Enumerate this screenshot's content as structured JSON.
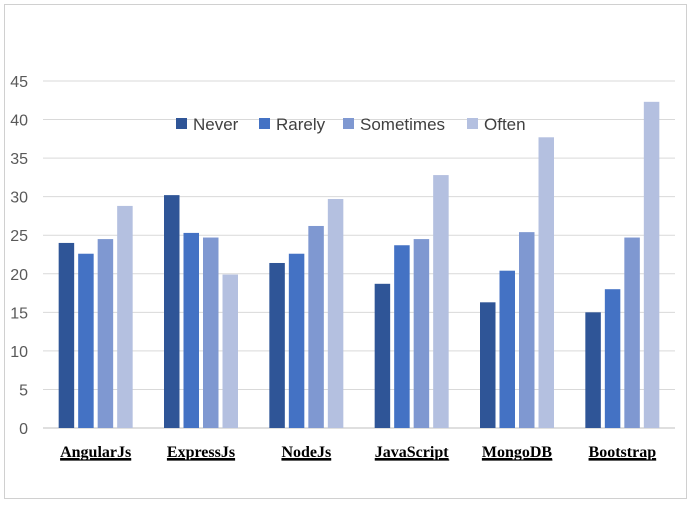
{
  "chart_data": {
    "type": "bar",
    "title": "",
    "xlabel": "",
    "ylabel": "",
    "categories": [
      "AngularJs",
      "ExpressJs",
      "NodeJs",
      "JavaScript",
      "MongoDB",
      "Bootstrap"
    ],
    "series": [
      {
        "name": "Never",
        "color": "#2f5597",
        "values": [
          24,
          30.2,
          21.4,
          18.7,
          16.3,
          15
        ]
      },
      {
        "name": "Rarely",
        "color": "#4472c4",
        "values": [
          22.6,
          25.3,
          22.6,
          23.7,
          20.4,
          18
        ]
      },
      {
        "name": "Sometimes",
        "color": "#7f98d1",
        "values": [
          24.5,
          24.7,
          26.2,
          24.5,
          25.4,
          24.7
        ]
      },
      {
        "name": "Often",
        "color": "#b4c0e0",
        "values": [
          28.8,
          19.9,
          29.7,
          32.8,
          37.7,
          42.3
        ]
      }
    ],
    "ylim": [
      0,
      45
    ],
    "yticks": [
      0,
      5,
      10,
      15,
      20,
      25,
      30,
      35,
      40,
      45
    ],
    "grid": true,
    "legend_position": "top-center",
    "category_label_style": "bold underlined"
  }
}
